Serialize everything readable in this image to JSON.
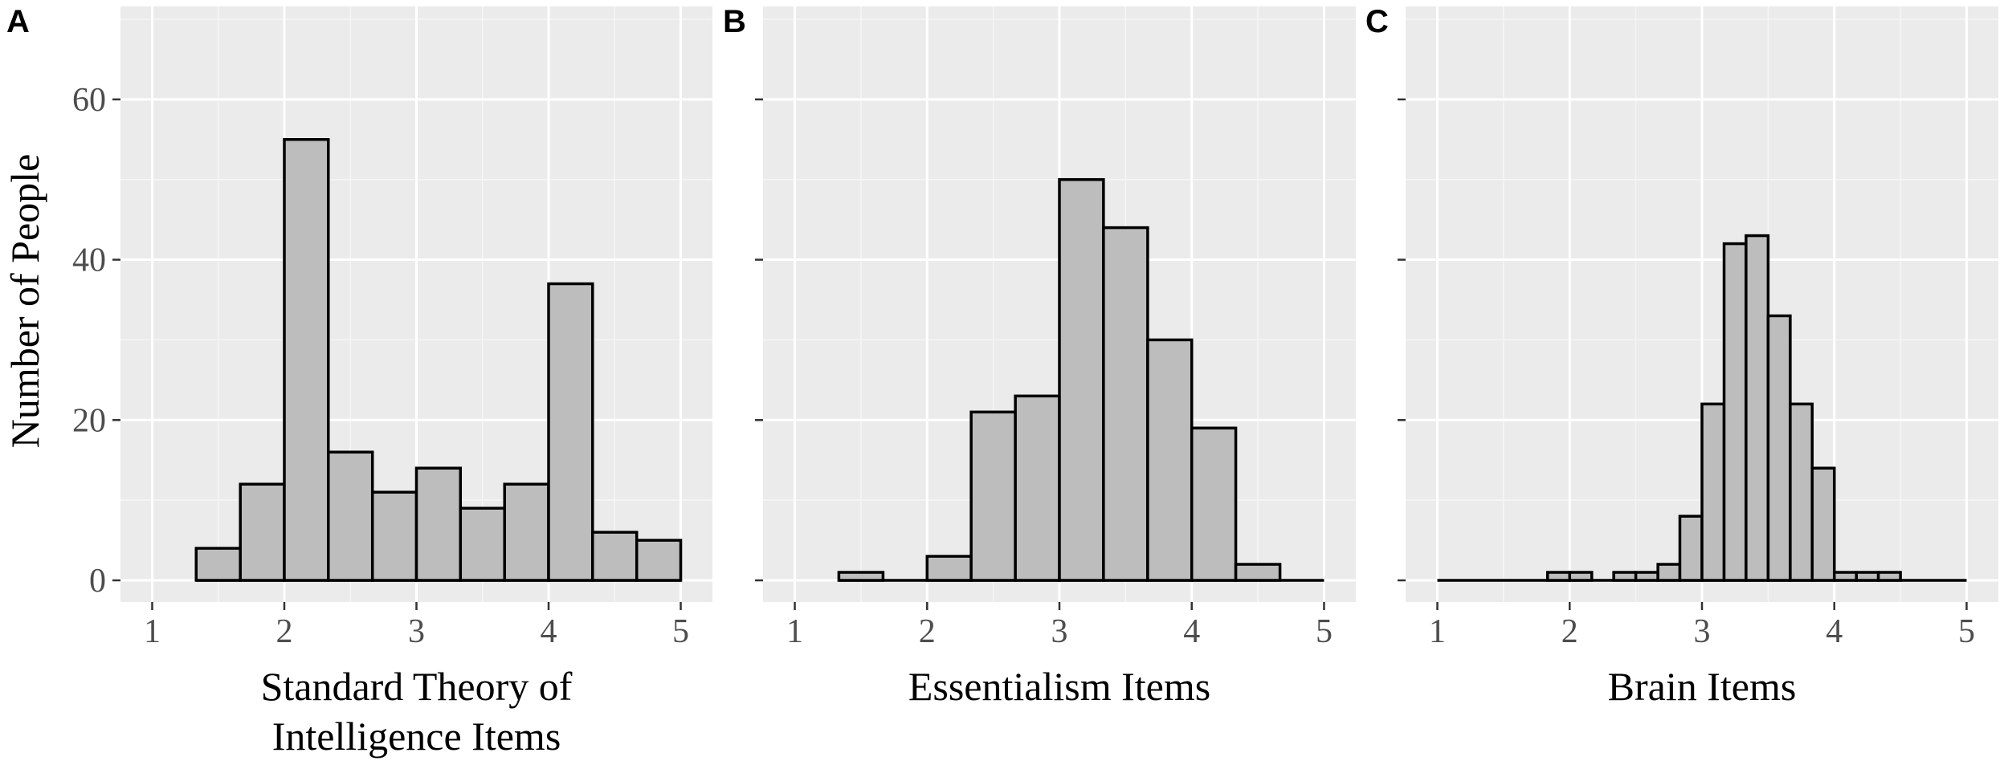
{
  "chart_data": [
    {
      "panel": "A",
      "type": "bar",
      "xlabel": [
        "Standard Theory of",
        "Intelligence Items"
      ],
      "ylabel": "Number of People",
      "xlim": [
        1,
        5
      ],
      "ylim": [
        0,
        72
      ],
      "xticks": [
        1,
        2,
        3,
        4,
        5
      ],
      "yticks": [
        0,
        20,
        40,
        60
      ],
      "bins": [
        {
          "x0": 1.333,
          "x1": 1.667,
          "count": 4
        },
        {
          "x0": 1.667,
          "x1": 2.0,
          "count": 12
        },
        {
          "x0": 2.0,
          "x1": 2.333,
          "count": 55
        },
        {
          "x0": 2.333,
          "x1": 2.667,
          "count": 16
        },
        {
          "x0": 2.667,
          "x1": 3.0,
          "count": 11
        },
        {
          "x0": 3.0,
          "x1": 3.333,
          "count": 14
        },
        {
          "x0": 3.333,
          "x1": 3.667,
          "count": 9
        },
        {
          "x0": 3.667,
          "x1": 4.0,
          "count": 12
        },
        {
          "x0": 4.0,
          "x1": 4.333,
          "count": 37
        },
        {
          "x0": 4.333,
          "x1": 4.667,
          "count": 6
        },
        {
          "x0": 4.667,
          "x1": 5.0,
          "count": 5
        }
      ]
    },
    {
      "panel": "B",
      "type": "bar",
      "xlabel": [
        "Essentialism Items"
      ],
      "ylabel": "",
      "xlim": [
        1,
        5
      ],
      "ylim": [
        0,
        72
      ],
      "xticks": [
        1,
        2,
        3,
        4,
        5
      ],
      "yticks": [
        0,
        20,
        40,
        60
      ],
      "bins": [
        {
          "x0": 1.333,
          "x1": 1.667,
          "count": 1
        },
        {
          "x0": 1.667,
          "x1": 2.0,
          "count": 0
        },
        {
          "x0": 2.0,
          "x1": 2.333,
          "count": 3
        },
        {
          "x0": 2.333,
          "x1": 2.667,
          "count": 21
        },
        {
          "x0": 2.667,
          "x1": 3.0,
          "count": 23
        },
        {
          "x0": 3.0,
          "x1": 3.333,
          "count": 50
        },
        {
          "x0": 3.333,
          "x1": 3.667,
          "count": 44
        },
        {
          "x0": 3.667,
          "x1": 4.0,
          "count": 30
        },
        {
          "x0": 4.0,
          "x1": 4.333,
          "count": 19
        },
        {
          "x0": 4.333,
          "x1": 4.667,
          "count": 2
        },
        {
          "x0": 4.667,
          "x1": 5.0,
          "count": 0
        }
      ]
    },
    {
      "panel": "C",
      "type": "bar",
      "xlabel": [
        "Brain Items"
      ],
      "ylabel": "",
      "xlim": [
        1,
        5
      ],
      "ylim": [
        0,
        72
      ],
      "xticks": [
        1,
        2,
        3,
        4,
        5
      ],
      "yticks": [
        0,
        20,
        40,
        60
      ],
      "bins": [
        {
          "x0": 1.0,
          "x1": 1.167,
          "count": 0
        },
        {
          "x0": 1.167,
          "x1": 1.333,
          "count": 0
        },
        {
          "x0": 1.333,
          "x1": 1.5,
          "count": 0
        },
        {
          "x0": 1.5,
          "x1": 1.667,
          "count": 0
        },
        {
          "x0": 1.667,
          "x1": 1.833,
          "count": 0
        },
        {
          "x0": 1.833,
          "x1": 2.0,
          "count": 1
        },
        {
          "x0": 2.0,
          "x1": 2.167,
          "count": 1
        },
        {
          "x0": 2.167,
          "x1": 2.333,
          "count": 0
        },
        {
          "x0": 2.333,
          "x1": 2.5,
          "count": 1
        },
        {
          "x0": 2.5,
          "x1": 2.667,
          "count": 1
        },
        {
          "x0": 2.667,
          "x1": 2.833,
          "count": 2
        },
        {
          "x0": 2.833,
          "x1": 3.0,
          "count": 8
        },
        {
          "x0": 3.0,
          "x1": 3.167,
          "count": 22
        },
        {
          "x0": 3.167,
          "x1": 3.333,
          "count": 42
        },
        {
          "x0": 3.333,
          "x1": 3.5,
          "count": 43
        },
        {
          "x0": 3.5,
          "x1": 3.667,
          "count": 33
        },
        {
          "x0": 3.667,
          "x1": 3.833,
          "count": 22
        },
        {
          "x0": 3.833,
          "x1": 4.0,
          "count": 14
        },
        {
          "x0": 4.0,
          "x1": 4.167,
          "count": 1
        },
        {
          "x0": 4.167,
          "x1": 4.333,
          "count": 1
        },
        {
          "x0": 4.333,
          "x1": 4.5,
          "count": 1
        },
        {
          "x0": 4.5,
          "x1": 4.667,
          "count": 0
        },
        {
          "x0": 4.667,
          "x1": 4.833,
          "count": 0
        },
        {
          "x0": 4.833,
          "x1": 5.0,
          "count": 0
        }
      ]
    }
  ]
}
